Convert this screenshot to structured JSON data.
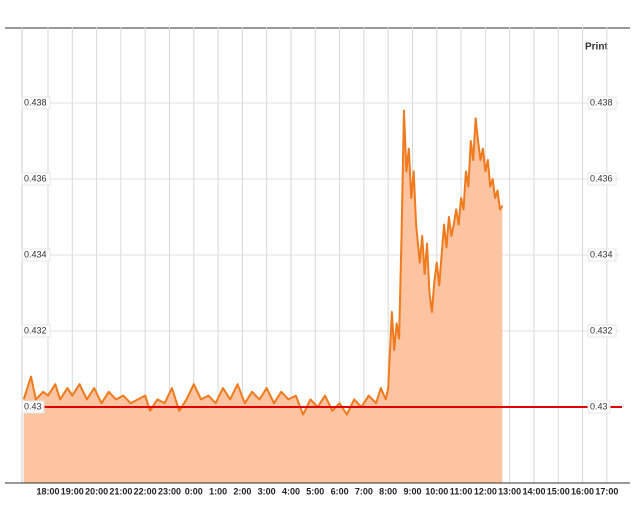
{
  "chart_data": {
    "type": "area",
    "right_axis_title": "Print",
    "line_color": "#f07a1e",
    "fill_color": "#fcc4a0",
    "reference_line": {
      "value": 0.43,
      "color": "#e00000"
    },
    "x": [
      0,
      0.3,
      0.5,
      0.8,
      1.0,
      1.3,
      1.5,
      1.8,
      2.0,
      2.3,
      2.6,
      2.9,
      3.2,
      3.5,
      3.8,
      4.1,
      4.4,
      4.7,
      5.0,
      5.2,
      5.5,
      5.8,
      6.1,
      6.4,
      6.7,
      7.0,
      7.3,
      7.6,
      7.9,
      8.2,
      8.5,
      8.8,
      9.1,
      9.4,
      9.7,
      10.0,
      10.3,
      10.6,
      10.9,
      11.2,
      11.5,
      11.8,
      12.1,
      12.4,
      12.7,
      13.0,
      13.3,
      13.6,
      13.9,
      14.2,
      14.5,
      14.7,
      14.9,
      15.0,
      15.1,
      15.15,
      15.25,
      15.35,
      15.45,
      15.55,
      15.65,
      15.75,
      15.85,
      15.95,
      16.05,
      16.15,
      16.3,
      16.4,
      16.5,
      16.6,
      16.7,
      16.8,
      16.9,
      17.0,
      17.1,
      17.2,
      17.3,
      17.4,
      17.5,
      17.6,
      17.7,
      17.8,
      17.9,
      18.0,
      18.1,
      18.2,
      18.3,
      18.4,
      18.5,
      18.6,
      18.7,
      18.8,
      18.9,
      19.0,
      19.1,
      19.2,
      19.3,
      19.4,
      19.5,
      19.6,
      19.7
    ],
    "values": [
      0.4302,
      0.4308,
      0.4302,
      0.4304,
      0.4303,
      0.4306,
      0.4302,
      0.4305,
      0.4303,
      0.4306,
      0.4302,
      0.4305,
      0.4301,
      0.4304,
      0.4302,
      0.4303,
      0.4301,
      0.4302,
      0.4303,
      0.4299,
      0.4302,
      0.4301,
      0.4305,
      0.4299,
      0.4302,
      0.4306,
      0.4302,
      0.4303,
      0.4301,
      0.4305,
      0.4302,
      0.4306,
      0.4301,
      0.4304,
      0.4302,
      0.4305,
      0.4301,
      0.4304,
      0.4302,
      0.4303,
      0.4298,
      0.4302,
      0.43,
      0.4303,
      0.4299,
      0.4301,
      0.4298,
      0.4302,
      0.43,
      0.4303,
      0.4301,
      0.4305,
      0.4302,
      0.4305,
      0.4318,
      0.4325,
      0.4315,
      0.4322,
      0.4318,
      0.4345,
      0.4378,
      0.4362,
      0.4368,
      0.4355,
      0.4362,
      0.4348,
      0.4338,
      0.4345,
      0.4335,
      0.4343,
      0.433,
      0.4325,
      0.4333,
      0.4338,
      0.4332,
      0.434,
      0.4348,
      0.4342,
      0.435,
      0.4345,
      0.4348,
      0.4352,
      0.4348,
      0.4355,
      0.4352,
      0.4362,
      0.4358,
      0.437,
      0.4365,
      0.4376,
      0.437,
      0.4365,
      0.4368,
      0.4362,
      0.4365,
      0.4358,
      0.436,
      0.4355,
      0.4357,
      0.4352,
      0.4353
    ],
    "xlim": [
      0,
      24.5
    ],
    "xticks": [
      {
        "value": 1,
        "label": "18:00"
      },
      {
        "value": 2,
        "label": "19:00"
      },
      {
        "value": 3,
        "label": "20:00"
      },
      {
        "value": 4,
        "label": "21:00"
      },
      {
        "value": 5,
        "label": "22:00"
      },
      {
        "value": 6,
        "label": "23:00"
      },
      {
        "value": 7,
        "label": "0:00"
      },
      {
        "value": 8,
        "label": "1:00"
      },
      {
        "value": 9,
        "label": "2:00"
      },
      {
        "value": 10,
        "label": "3:00"
      },
      {
        "value": 11,
        "label": "4:00"
      },
      {
        "value": 12,
        "label": "5:00"
      },
      {
        "value": 13,
        "label": "6:00"
      },
      {
        "value": 14,
        "label": "7:00"
      },
      {
        "value": 15,
        "label": "8:00"
      },
      {
        "value": 16,
        "label": "9:00"
      },
      {
        "value": 17,
        "label": "10:00"
      },
      {
        "value": 18,
        "label": "11:00"
      },
      {
        "value": 19,
        "label": "12:00"
      },
      {
        "value": 20,
        "label": "13:00"
      },
      {
        "value": 21,
        "label": "14:00"
      },
      {
        "value": 22,
        "label": "15:00"
      },
      {
        "value": 23,
        "label": "16:00"
      },
      {
        "value": 24,
        "label": "17:00"
      }
    ],
    "ylim": [
      0.428,
      0.44
    ],
    "yticks": [
      0.432,
      0.434,
      0.436,
      0.438
    ],
    "grid": true
  }
}
